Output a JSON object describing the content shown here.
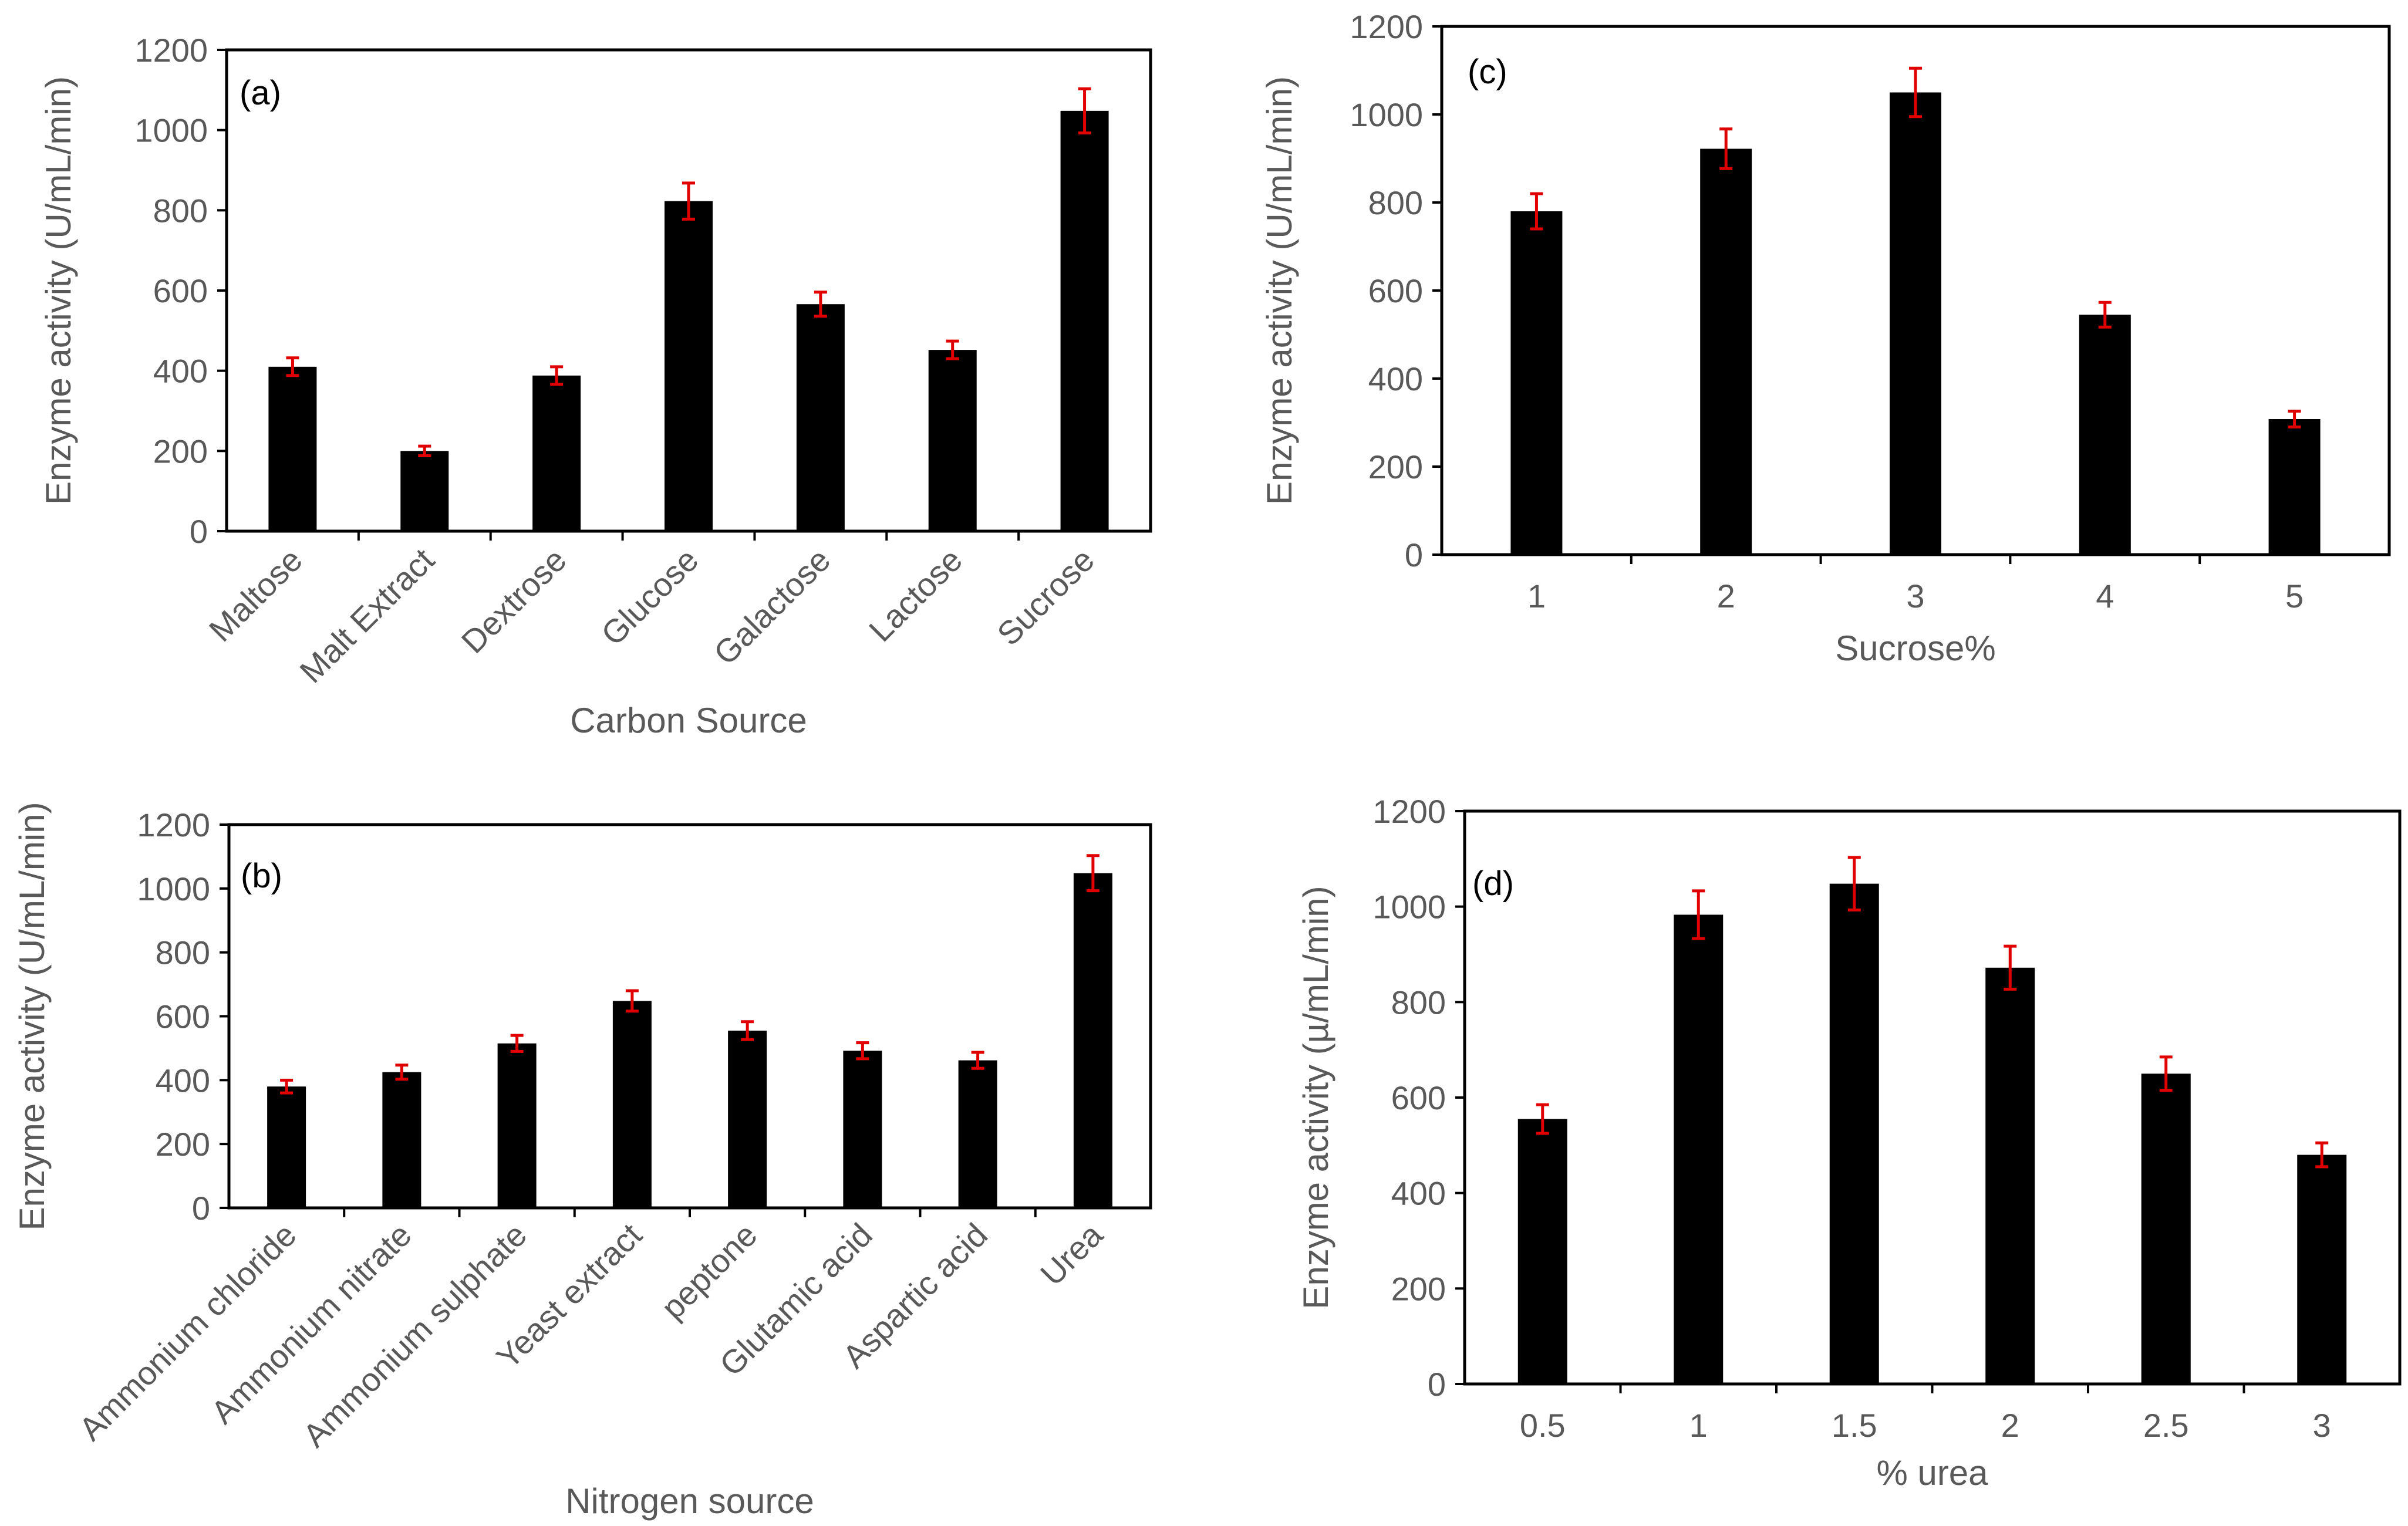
{
  "colors": {
    "bar": "#000000",
    "error_bar": "#e00000",
    "text": "#595959",
    "frame": "#000000"
  },
  "chart_data": [
    {
      "id": "a",
      "type": "bar",
      "panel_label": "(a)",
      "xlabel": "Carbon Source",
      "ylabel": "Enzyme activity (U/mL/min)",
      "ylim": [
        0,
        1200
      ],
      "yticks": [
        "0",
        "200",
        "400",
        "600",
        "800",
        "1000",
        "1200"
      ],
      "categories": [
        "Maltose",
        "Malt Extract",
        "Dextrose",
        "Glucose",
        "Galactose",
        "Lactose",
        "Sucrose"
      ],
      "values": [
        410,
        200,
        388,
        823,
        566,
        452,
        1048
      ],
      "errors": [
        22,
        12,
        22,
        45,
        30,
        22,
        55
      ],
      "rotated_labels": true,
      "grid": false
    },
    {
      "id": "b",
      "type": "bar",
      "panel_label": "(b)",
      "xlabel": "Nitrogen source",
      "ylabel": "Enzyme activity (U/mL/min)",
      "ylim": [
        0,
        1200
      ],
      "yticks": [
        "0",
        "200",
        "400",
        "600",
        "800",
        "1000",
        "1200"
      ],
      "categories": [
        "Ammonium chloride",
        "Ammonium nitrate",
        "Ammonium sulphate",
        "Yeast extract",
        "peptone",
        "Glutamic acid",
        "Aspartic acid",
        "Urea"
      ],
      "values": [
        380,
        425,
        515,
        648,
        555,
        492,
        462,
        1048
      ],
      "errors": [
        20,
        22,
        25,
        32,
        28,
        25,
        25,
        55
      ],
      "rotated_labels": true,
      "grid": false
    },
    {
      "id": "c",
      "type": "bar",
      "panel_label": "(c)",
      "xlabel": "Sucrose%",
      "ylabel": "Enzyme activity (U/mL/min)",
      "ylim": [
        0,
        1200
      ],
      "yticks": [
        "0",
        "200",
        "400",
        "600",
        "800",
        "1000",
        "1200"
      ],
      "categories": [
        "1",
        "2",
        "3",
        "4",
        "5"
      ],
      "values": [
        780,
        922,
        1050,
        545,
        308
      ],
      "errors": [
        40,
        45,
        55,
        28,
        18
      ],
      "rotated_labels": false,
      "grid": false
    },
    {
      "id": "d",
      "type": "bar",
      "panel_label": "(d)",
      "xlabel": "% urea",
      "ylabel": "Enzyme activity (µ/mL/min)",
      "ylim": [
        0,
        1200
      ],
      "yticks": [
        "0",
        "200",
        "400",
        "600",
        "800",
        "1000",
        "1200"
      ],
      "categories": [
        "0.5",
        "1",
        "1.5",
        "2",
        "2.5",
        "3"
      ],
      "values": [
        555,
        983,
        1048,
        872,
        650,
        480
      ],
      "errors": [
        30,
        50,
        55,
        45,
        35,
        25
      ],
      "rotated_labels": false,
      "grid": false
    }
  ]
}
